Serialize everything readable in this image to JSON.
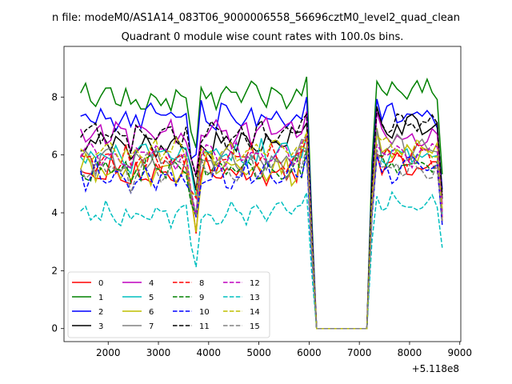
{
  "chart_data": {
    "type": "line",
    "suptitle": "n file: modeM0/AS1A14_083T06_9000006558_56696cztM0_level2_quad_clean",
    "title": "Quadrant 0 module wise count rates with 100.0s bins.",
    "xlabel": "",
    "ylabel": "",
    "x_offset_label": "+5.118e8",
    "xlim": [
      1120,
      9020
    ],
    "ylim": [
      -0.45,
      9.75
    ],
    "xticks": [
      2000,
      3000,
      4000,
      5000,
      6000,
      7000,
      8000,
      9000
    ],
    "yticks": [
      0,
      2,
      4,
      6,
      8
    ],
    "grid": false,
    "legend_position": "lower-left",
    "legend_columns": 4,
    "x_start": 1450,
    "x_step": 100,
    "n_points": 73,
    "series": [
      {
        "name": "0",
        "color": "#ff0000",
        "dash": "solid",
        "base": 5.4,
        "amp": 0.35,
        "seg2": 5.7
      },
      {
        "name": "1",
        "color": "#008000",
        "dash": "solid",
        "base": 8.0,
        "amp": 0.35,
        "seg2": 8.2
      },
      {
        "name": "2",
        "color": "#0000ff",
        "dash": "solid",
        "base": 7.3,
        "amp": 0.35,
        "seg2": 7.4
      },
      {
        "name": "3",
        "color": "#000000",
        "dash": "solid",
        "base": 6.4,
        "amp": 0.35,
        "seg2": 6.9
      },
      {
        "name": "4",
        "color": "#bf00bf",
        "dash": "solid",
        "base": 6.8,
        "amp": 0.35,
        "seg2": 6.6
      },
      {
        "name": "5",
        "color": "#00bfbf",
        "dash": "solid",
        "base": 6.0,
        "amp": 0.35,
        "seg2": 6.1
      },
      {
        "name": "6",
        "color": "#bfbf00",
        "dash": "solid",
        "base": 5.5,
        "amp": 0.4,
        "seg2": 6.2
      },
      {
        "name": "7",
        "color": "#808080",
        "dash": "solid",
        "base": 5.8,
        "amp": 0.3,
        "seg2": 6.3
      },
      {
        "name": "8",
        "color": "#ff0000",
        "dash": "dashed",
        "base": 5.9,
        "amp": 0.3,
        "seg2": 5.9
      },
      {
        "name": "9",
        "color": "#008000",
        "dash": "dashed",
        "base": 5.5,
        "amp": 0.3,
        "seg2": 5.6
      },
      {
        "name": "10",
        "color": "#0000ff",
        "dash": "dashed",
        "base": 5.3,
        "amp": 0.35,
        "seg2": 5.5
      },
      {
        "name": "11",
        "color": "#000000",
        "dash": "dashed",
        "base": 6.7,
        "amp": 0.3,
        "seg2": 7.1
      },
      {
        "name": "12",
        "color": "#bf00bf",
        "dash": "dashed",
        "base": 6.0,
        "amp": 0.3,
        "seg2": 6.0
      },
      {
        "name": "13",
        "color": "#00bfbf",
        "dash": "dashed",
        "base": 4.0,
        "amp": 0.3,
        "seg2": 4.3
      },
      {
        "name": "14",
        "color": "#bfbf00",
        "dash": "dashed",
        "base": 6.1,
        "amp": 0.3,
        "seg2": 6.3
      },
      {
        "name": "15",
        "color": "#808080",
        "dash": "dashed",
        "base": 5.6,
        "amp": 0.3,
        "seg2": 5.6
      }
    ]
  }
}
